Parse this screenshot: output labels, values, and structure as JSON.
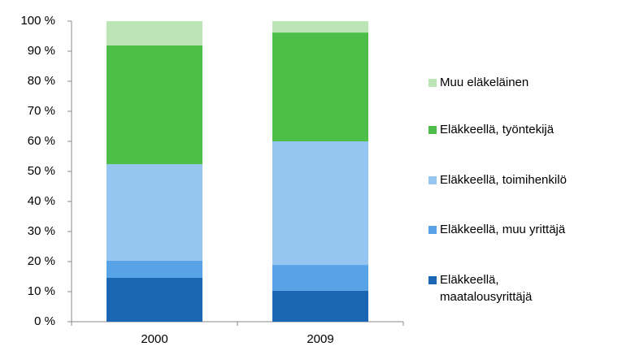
{
  "chart_data": {
    "type": "stacked_bar",
    "categories": [
      "2000",
      "2009"
    ],
    "series": [
      {
        "name": "Eläkkeellä, maatalousyrittäjä",
        "color": "#1c67b3",
        "values": [
          14.6,
          10.3
        ]
      },
      {
        "name": "Eläkkeellä, muu yrittäjä",
        "color": "#58a3e8",
        "values": [
          5.7,
          8.6
        ]
      },
      {
        "name": "Eläkkeellä, toimihenkilö",
        "color": "#95c6f1",
        "values": [
          32.1,
          41.1
        ]
      },
      {
        "name": "Eläkkeellä, työntekijä",
        "color": "#4dbf48",
        "values": [
          39.5,
          36.2
        ]
      },
      {
        "name": "Muu eläkeläinen",
        "color": "#bce5b5",
        "values": [
          8.1,
          3.8
        ]
      }
    ],
    "ylim": [
      0,
      100
    ],
    "yticks": [
      {
        "value": 0,
        "label": "0 %"
      },
      {
        "value": 10,
        "label": "10 %"
      },
      {
        "value": 20,
        "label": "20 %"
      },
      {
        "value": 30,
        "label": "30 %"
      },
      {
        "value": 40,
        "label": "40 %"
      },
      {
        "value": 50,
        "label": "50 %"
      },
      {
        "value": 60,
        "label": "60 %"
      },
      {
        "value": 70,
        "label": "70 %"
      },
      {
        "value": 80,
        "label": "80 %"
      },
      {
        "value": 90,
        "label": "90 %"
      },
      {
        "value": 100,
        "label": "100 %"
      }
    ],
    "grid": false,
    "legend": "right"
  }
}
